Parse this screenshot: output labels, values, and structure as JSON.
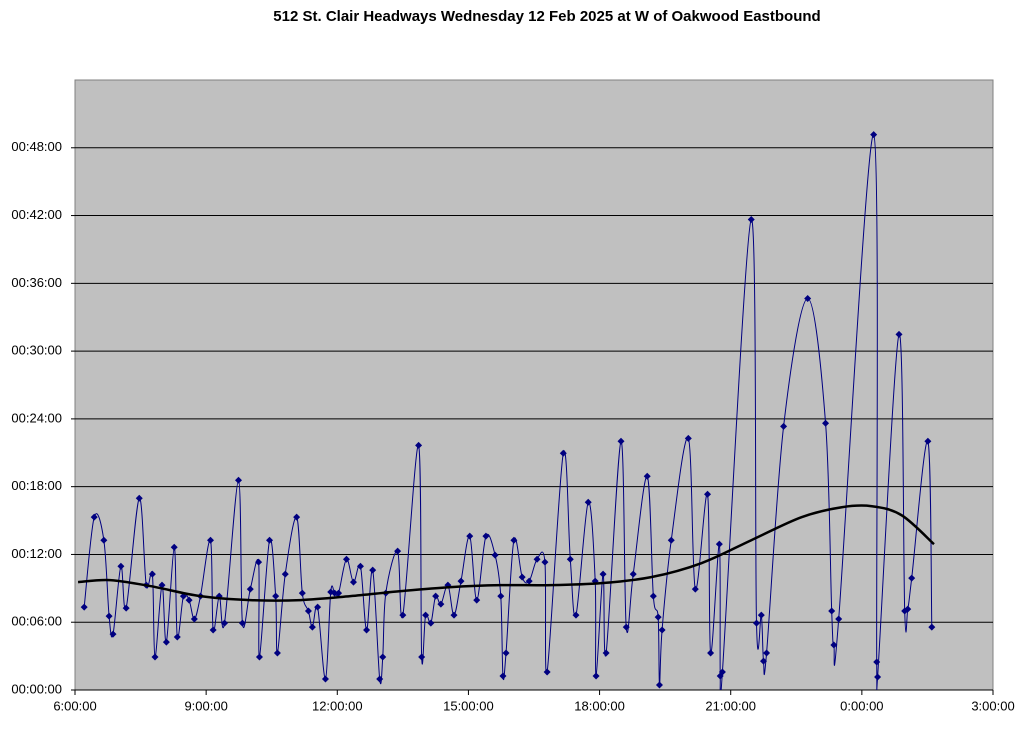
{
  "chart_data": {
    "type": "line",
    "title": "512 St. Clair Headways Wednesday 12 Feb 2025 at W of Oakwood Eastbound",
    "xlim": [
      6,
      27
    ],
    "xticks": [
      {
        "value": 6,
        "label": "6:00:00"
      },
      {
        "value": 9,
        "label": "9:00:00"
      },
      {
        "value": 12,
        "label": "12:00:00"
      },
      {
        "value": 15,
        "label": "15:00:00"
      },
      {
        "value": 18,
        "label": "18:00:00"
      },
      {
        "value": 21,
        "label": "21:00:00"
      },
      {
        "value": 24,
        "label": "0:00:00"
      },
      {
        "value": 27,
        "label": "3:00:00"
      }
    ],
    "ylim": [
      0,
      54
    ],
    "yticks": [
      {
        "value": 0,
        "label": "00:00:00"
      },
      {
        "value": 6,
        "label": "00:06:00"
      },
      {
        "value": 12,
        "label": "00:12:00"
      },
      {
        "value": 18,
        "label": "00:18:00"
      },
      {
        "value": 24,
        "label": "00:24:00"
      },
      {
        "value": 30,
        "label": "00:30:00"
      },
      {
        "value": 36,
        "label": "00:36:00"
      },
      {
        "value": 42,
        "label": "00:42:00"
      },
      {
        "value": 48,
        "label": "00:48:00"
      }
    ],
    "grid": true,
    "smooth": true,
    "background": "#c0c0c0",
    "series": [
      {
        "color": "#000080",
        "line_width": 1,
        "marker": "diamond",
        "x": [
          6.21,
          6.44,
          6.66,
          6.78,
          6.87,
          7.05,
          7.17,
          7.47,
          7.63,
          7.77,
          7.83,
          7.99,
          8.09,
          8.27,
          8.34,
          8.48,
          8.61,
          8.73,
          8.87,
          9.1,
          9.16,
          9.3,
          9.42,
          9.74,
          9.83,
          10.01,
          10.2,
          10.22,
          10.45,
          10.59,
          10.63,
          10.81,
          11.07,
          11.2,
          11.34,
          11.43,
          11.55,
          11.73,
          11.85,
          11.94,
          12.03,
          12.21,
          12.37,
          12.53,
          12.67,
          12.81,
          12.97,
          13.04,
          13.11,
          13.38,
          13.5,
          13.86,
          13.93,
          14.02,
          14.14,
          14.25,
          14.37,
          14.53,
          14.67,
          14.83,
          15.03,
          15.19,
          15.4,
          15.61,
          15.74,
          15.79,
          15.86,
          16.04,
          16.23,
          16.39,
          16.57,
          16.75,
          16.8,
          17.17,
          17.33,
          17.46,
          17.74,
          17.9,
          17.92,
          18.08,
          18.15,
          18.49,
          18.61,
          18.77,
          19.09,
          19.23,
          19.34,
          19.37,
          19.43,
          19.64,
          20.03,
          20.19,
          20.47,
          20.54,
          20.74,
          20.76,
          20.81,
          21.47,
          21.59,
          21.7,
          21.75,
          21.82,
          22.21,
          22.76,
          23.17,
          23.31,
          23.36,
          23.47,
          24.27,
          24.34,
          24.36,
          24.85,
          24.98,
          25.05,
          25.14,
          25.51,
          25.6
        ],
        "values": [
          7.34,
          15.3,
          13.26,
          6.54,
          4.95,
          10.96,
          7.25,
          16.98,
          9.28,
          10.26,
          2.92,
          9.28,
          4.24,
          12.64,
          4.69,
          8.31,
          7.96,
          6.28,
          8.31,
          13.26,
          5.31,
          8.31,
          5.92,
          18.57,
          5.92,
          8.93,
          11.32,
          2.92,
          13.26,
          8.31,
          3.27,
          10.26,
          15.3,
          8.58,
          6.99,
          5.57,
          7.34,
          0.97,
          8.67,
          8.58,
          8.58,
          11.58,
          9.55,
          10.96,
          5.31,
          10.61,
          0.97,
          2.92,
          8.58,
          12.29,
          6.63,
          21.66,
          2.92,
          6.63,
          5.92,
          8.31,
          7.6,
          9.28,
          6.63,
          9.64,
          13.62,
          7.96,
          13.62,
          11.94,
          8.31,
          1.24,
          3.27,
          13.26,
          9.99,
          9.64,
          11.58,
          11.32,
          1.59,
          20.96,
          11.58,
          6.63,
          16.62,
          9.64,
          1.24,
          10.26,
          3.27,
          22.02,
          5.57,
          10.26,
          18.92,
          8.31,
          6.45,
          0.44,
          5.31,
          13.26,
          22.28,
          8.93,
          17.33,
          3.27,
          12.91,
          1.24,
          1.59,
          41.65,
          5.92,
          6.63,
          2.56,
          3.27,
          23.34,
          34.66,
          23.61,
          6.99,
          3.98,
          6.28,
          49.16,
          2.48,
          1.15,
          31.48,
          6.99,
          7.16,
          9.9,
          22.02,
          5.57
        ]
      },
      {
        "color": "#000000",
        "line_width": 2.5,
        "x": [
          6.07,
          6.8,
          7.72,
          8.87,
          10.01,
          11.16,
          12.3,
          13.45,
          14.6,
          15.74,
          16.89,
          18.04,
          19.18,
          20.33,
          21.47,
          22.62,
          23.54,
          24.23,
          24.91,
          25.65
        ],
        "values": [
          9.55,
          9.73,
          9.2,
          8.31,
          7.96,
          7.96,
          8.31,
          8.75,
          9.11,
          9.28,
          9.28,
          9.46,
          9.99,
          11.23,
          13.26,
          15.3,
          16.18,
          16.27,
          15.47,
          12.91
        ]
      }
    ]
  }
}
